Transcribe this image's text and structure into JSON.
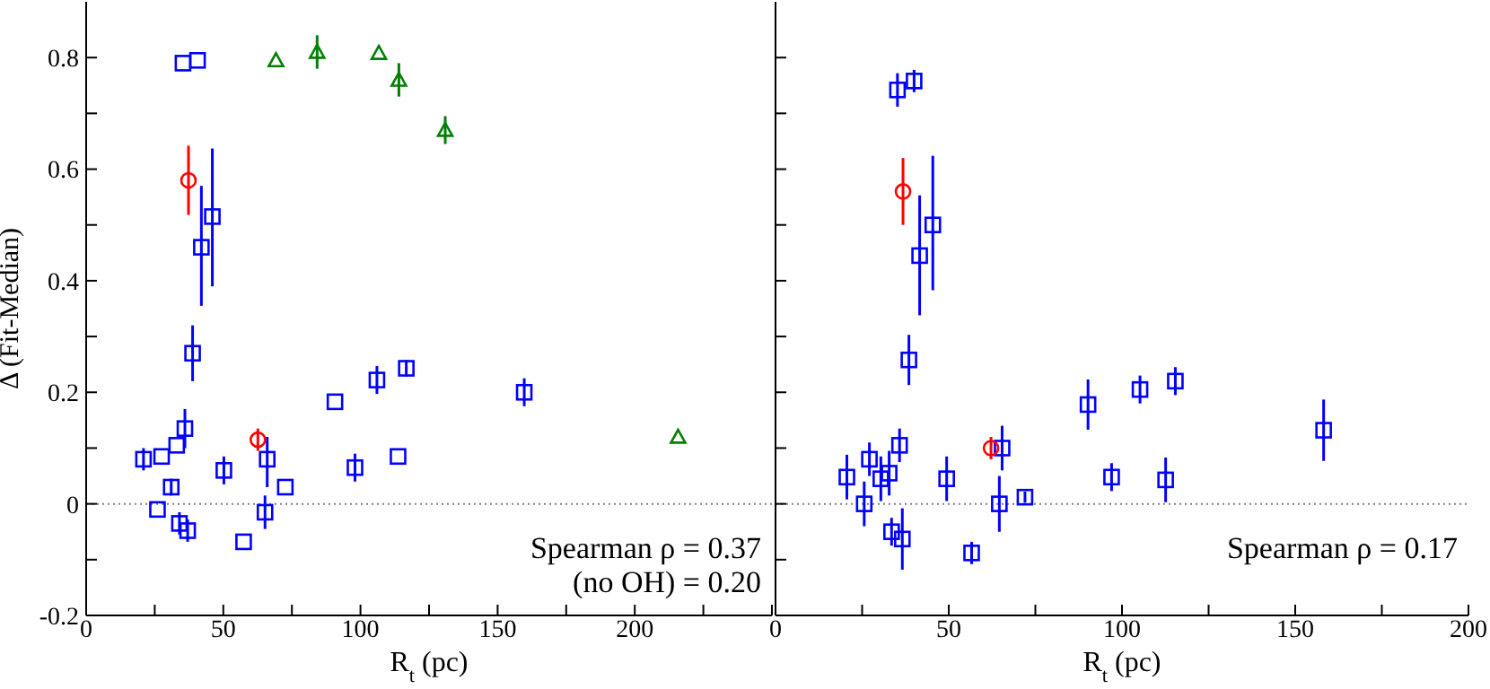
{
  "chart_data": [
    {
      "type": "scatter",
      "xlabel": "R$_{t}$ (pc)",
      "ylabel": "Δ (Fit-Median)",
      "xlim": [
        0,
        250
      ],
      "xticks": [
        0,
        {
          "value": 25,
          "label": null
        },
        50,
        {
          "value": 75,
          "label": null
        },
        100,
        {
          "value": 125,
          "label": null
        },
        150,
        {
          "value": 175,
          "label": null
        },
        200,
        {
          "value": 225,
          "label": null
        },
        {
          "value": 250,
          "label": null
        }
      ],
      "ylim": [
        -0.2,
        0.9
      ],
      "yticks": [
        -0.2,
        {
          "value": -0.1,
          "label": null
        },
        0,
        {
          "value": 0.1,
          "label": null
        },
        0.2,
        {
          "value": 0.3,
          "label": null
        },
        0.4,
        {
          "value": 0.5,
          "label": null
        },
        0.6,
        {
          "value": 0.7,
          "label": null
        },
        0.8
      ],
      "ref_lines": [
        {
          "axis": "y",
          "value": 0,
          "line_style": "dotted",
          "color": "#808080"
        }
      ],
      "annotations": [
        "Spearman ρ = 0.37",
        "(no OH) = 0.20"
      ],
      "series": [
        {
          "color": "#0000ff",
          "marker": "square",
          "x": [
            20.9,
            26,
            27.5,
            31,
            33,
            34,
            36,
            37,
            35.3,
            40.6,
            38.8,
            42,
            46,
            50.2,
            57.4,
            65.2,
            66,
            72.6,
            90.7,
            98,
            106,
            113.7,
            116.7,
            159.7
          ],
          "values": [
            0.08,
            -0.01,
            0.085,
            0.03,
            0.105,
            -0.035,
            0.135,
            -0.048,
            0.79,
            0.795,
            0.27,
            0.46,
            0.515,
            0.06,
            -0.068,
            -0.015,
            0.08,
            0.03,
            0.183,
            0.065,
            0.222,
            0.085,
            0.243,
            0.2
          ],
          "errors": [
            0.02,
            null,
            null,
            0.015,
            null,
            0.02,
            0.035,
            0.02,
            null,
            null,
            0.05,
            [
              0.355,
              0.57
            ],
            [
              0.39,
              0.637
            ],
            0.025,
            null,
            0.03,
            [
              0.03,
              0.12
            ],
            null,
            null,
            0.025,
            0.025,
            null,
            0.015,
            0.025
          ]
        },
        {
          "color": "#ff0000",
          "marker": "circle",
          "x": [
            37.3,
            62.6
          ],
          "values": [
            0.58,
            0.115
          ],
          "errors": [
            [
              0.518,
              0.642
            ],
            0.02
          ]
        },
        {
          "color": "#008000",
          "marker": "triangle",
          "x": [
            69.2,
            84.2,
            106.7,
            114,
            130.9,
            215.8
          ],
          "values": [
            0.795,
            0.81,
            0.808,
            0.76,
            0.67,
            0.12
          ],
          "errors": [
            null,
            0.03,
            null,
            0.03,
            0.025,
            null
          ]
        }
      ]
    },
    {
      "type": "scatter",
      "xlabel": "R$_{t}$ (pc)",
      "xlim": [
        0,
        200
      ],
      "xticks": [
        0,
        {
          "value": 25,
          "label": null
        },
        50,
        {
          "value": 75,
          "label": null
        },
        100,
        {
          "value": 125,
          "label": null
        },
        150,
        {
          "value": 175,
          "label": null
        },
        200
      ],
      "ylim": [
        -0.2,
        0.9
      ],
      "yticks": [
        -0.2,
        {
          "value": -0.1,
          "label": null
        },
        0,
        {
          "value": 0.1,
          "label": null
        },
        0.2,
        {
          "value": 0.3,
          "label": null
        },
        0.4,
        {
          "value": 0.5,
          "label": null
        },
        0.6,
        {
          "value": 0.7,
          "label": null
        },
        0.8
      ],
      "tick_labels": "x",
      "ref_lines": [
        {
          "axis": "y",
          "value": 0,
          "line_style": "dotted",
          "color": "#808080"
        }
      ],
      "annotations": [
        "Spearman ρ = 0.17"
      ],
      "series": [
        {
          "color": "#0000ff",
          "marker": "square",
          "x": [
            20.6,
            25.6,
            27.1,
            30.4,
            32.8,
            33.5,
            35.2,
            35.8,
            36.6,
            40,
            38.5,
            41.6,
            45.4,
            49.4,
            56.6,
            64.6,
            65.4,
            72,
            90.2,
            97,
            105.2,
            115.4,
            112.6,
            158.2
          ],
          "values": [
            0.048,
            0.0,
            0.08,
            0.045,
            0.055,
            -0.05,
            0.742,
            0.105,
            -0.063,
            0.758,
            0.258,
            0.445,
            0.5,
            0.045,
            -0.088,
            0.0,
            0.1,
            0.012,
            0.178,
            0.048,
            0.205,
            0.22,
            0.043,
            0.132
          ],
          "errors": [
            0.04,
            0.04,
            0.03,
            0.04,
            0.04,
            0.025,
            0.03,
            0.03,
            0.055,
            0.02,
            0.045,
            [
              0.338,
              0.553
            ],
            [
              0.383,
              0.624
            ],
            0.04,
            0.02,
            0.05,
            0.04,
            0.01,
            0.045,
            0.025,
            0.025,
            0.025,
            0.04,
            0.055
          ]
        },
        {
          "color": "#ff0000",
          "marker": "circle",
          "x": [
            36.8,
            62.2
          ],
          "values": [
            0.56,
            0.1
          ],
          "errors": [
            [
              0.5,
              0.62
            ],
            0.02
          ]
        }
      ]
    }
  ]
}
